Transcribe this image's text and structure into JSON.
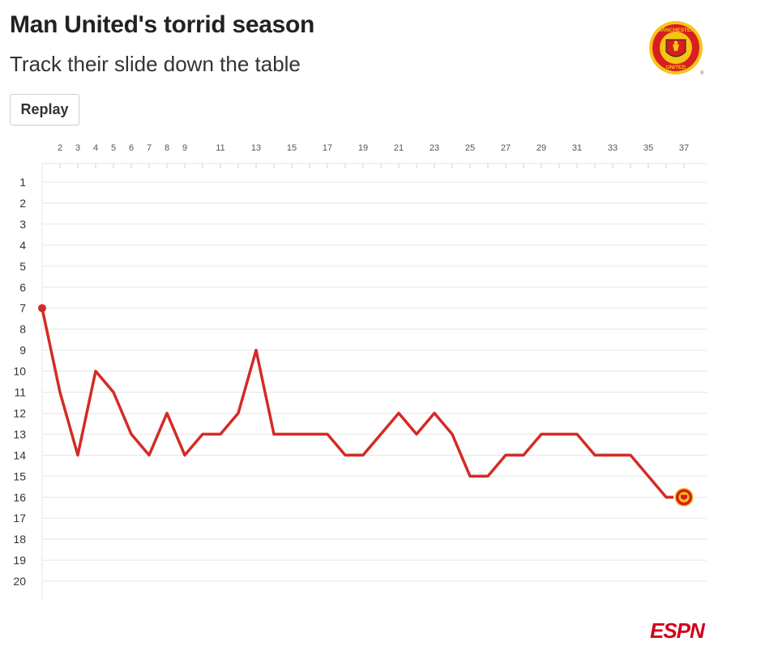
{
  "header": {
    "title": "Man United's torrid season",
    "subtitle": "Track their slide down the table",
    "replay_label": "Replay"
  },
  "logo": {
    "crest_icon": "manchester-united-crest",
    "crest_text_top": "MANCHESTER",
    "crest_text_bottom": "UNITED",
    "footer_logo_text": "ESPN"
  },
  "colors": {
    "line": "#d22c25",
    "grid": "#e6e6e6",
    "crest_red": "#d81e1e",
    "crest_gold": "#f5c518"
  },
  "chart_data": {
    "type": "line",
    "xlabel": "",
    "ylabel": "",
    "x_tick_labels": [
      2,
      3,
      4,
      5,
      6,
      7,
      8,
      9,
      11,
      13,
      15,
      17,
      19,
      21,
      23,
      25,
      27,
      29,
      31,
      33,
      35,
      37
    ],
    "y_tick_labels": [
      1,
      2,
      3,
      4,
      5,
      6,
      7,
      8,
      9,
      10,
      11,
      12,
      13,
      14,
      15,
      16,
      17,
      18,
      19,
      20
    ],
    "xlim": [
      1,
      38
    ],
    "ylim": [
      20,
      1
    ],
    "y_inverted": true,
    "grid": true,
    "series": [
      {
        "x": [
          1,
          2,
          3,
          4,
          5,
          6,
          7,
          8,
          9,
          10,
          11,
          12,
          13,
          14,
          15,
          16,
          17,
          18,
          19,
          20,
          21,
          22,
          23,
          24,
          25,
          26,
          27,
          28,
          29,
          30,
          31,
          32,
          33,
          34,
          35,
          36,
          37
        ],
        "values": [
          7,
          11,
          14,
          10,
          11,
          13,
          14,
          12,
          14,
          13,
          13,
          12,
          9,
          13,
          13,
          13,
          13,
          14,
          14,
          13,
          12,
          13,
          12,
          13,
          15,
          15,
          14,
          14,
          13,
          13,
          13,
          14,
          14,
          14,
          15,
          16,
          16
        ]
      }
    ]
  }
}
